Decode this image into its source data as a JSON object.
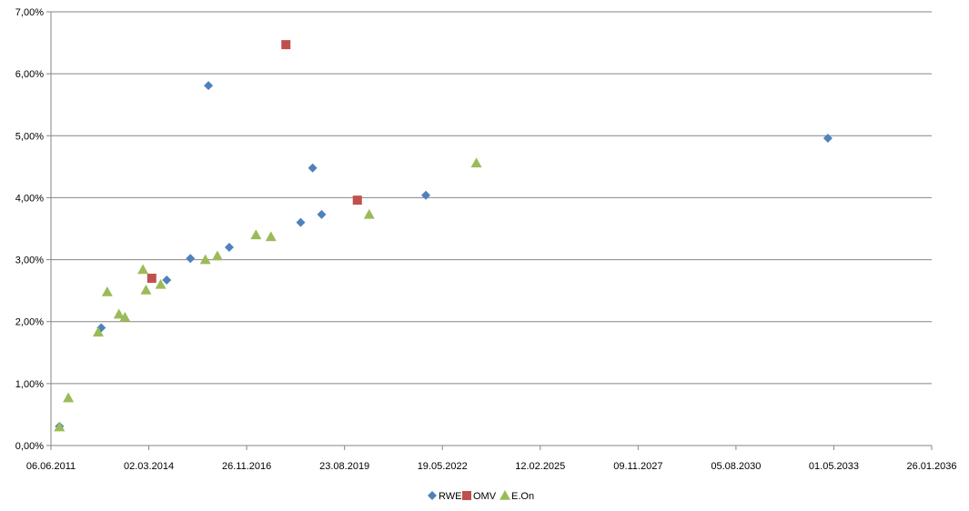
{
  "chart_data": {
    "type": "scatter",
    "title": "",
    "xlabel": "",
    "ylabel": "",
    "x_axis": {
      "type": "date",
      "min": "2011-06-06",
      "max": "2036-01-26",
      "ticks": [
        "06.06.2011",
        "02.03.2014",
        "26.11.2016",
        "23.08.2019",
        "19.05.2022",
        "12.02.2025",
        "09.11.2027",
        "05.08.2030",
        "01.05.2033",
        "26.01.2036"
      ]
    },
    "y_axis": {
      "min": 0,
      "max": 0.07,
      "ticks": [
        "0,00%",
        "1,00%",
        "2,00%",
        "3,00%",
        "4,00%",
        "5,00%",
        "6,00%",
        "7,00%"
      ],
      "gridlines": true
    },
    "legend_position": "bottom",
    "series": [
      {
        "name": "RWE",
        "color": "#4f81bd",
        "marker": "diamond",
        "points": [
          {
            "x": "2011-09-01",
            "y": 0.0031
          },
          {
            "x": "2012-11-01",
            "y": 0.019
          },
          {
            "x": "2014-09-01",
            "y": 0.0267
          },
          {
            "x": "2015-05-01",
            "y": 0.0302
          },
          {
            "x": "2015-11-01",
            "y": 0.0581
          },
          {
            "x": "2016-06-01",
            "y": 0.032
          },
          {
            "x": "2018-06-01",
            "y": 0.036
          },
          {
            "x": "2018-10-01",
            "y": 0.0448
          },
          {
            "x": "2019-01-01",
            "y": 0.0373
          },
          {
            "x": "2021-12-01",
            "y": 0.0404
          },
          {
            "x": "2033-03-01",
            "y": 0.0496
          }
        ]
      },
      {
        "name": "OMV",
        "color": "#c0504d",
        "marker": "square",
        "points": [
          {
            "x": "2014-04-01",
            "y": 0.027
          },
          {
            "x": "2018-01-01",
            "y": 0.0647
          },
          {
            "x": "2020-01-01",
            "y": 0.0396
          }
        ]
      },
      {
        "name": "E.On",
        "color": "#9bbb59",
        "marker": "triangle",
        "points": [
          {
            "x": "2011-09-01",
            "y": 0.003
          },
          {
            "x": "2011-12-01",
            "y": 0.0077
          },
          {
            "x": "2012-10-01",
            "y": 0.0183
          },
          {
            "x": "2013-01-01",
            "y": 0.0248
          },
          {
            "x": "2013-05-01",
            "y": 0.0212
          },
          {
            "x": "2013-07-01",
            "y": 0.0207
          },
          {
            "x": "2014-01-01",
            "y": 0.0284
          },
          {
            "x": "2014-02-01",
            "y": 0.0251
          },
          {
            "x": "2014-07-01",
            "y": 0.026
          },
          {
            "x": "2015-10-01",
            "y": 0.03
          },
          {
            "x": "2016-02-01",
            "y": 0.0306
          },
          {
            "x": "2017-03-01",
            "y": 0.034
          },
          {
            "x": "2017-08-01",
            "y": 0.0337
          },
          {
            "x": "2020-05-01",
            "y": 0.0373
          },
          {
            "x": "2023-05-01",
            "y": 0.0456
          }
        ]
      }
    ]
  }
}
